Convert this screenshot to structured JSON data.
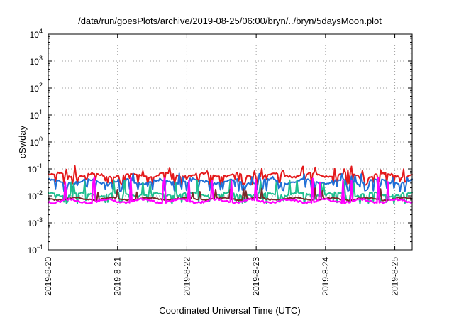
{
  "chart_data": {
    "type": "line",
    "title": "/data/run/goesPlots/archive/2019-08-25/06:00/bryn/../bryn/5daysMoon.plot",
    "xlabel": "Coordinated Universal Time (UTC)",
    "ylabel": "cSv/day",
    "y_scale": "log",
    "ylim_exponents": [
      -4,
      4
    ],
    "y_ticks": [
      {
        "base": "10",
        "exp": "-4"
      },
      {
        "base": "10",
        "exp": "-3"
      },
      {
        "base": "10",
        "exp": "-2"
      },
      {
        "base": "10",
        "exp": "-1"
      },
      {
        "base": "10",
        "exp": "0"
      },
      {
        "base": "10",
        "exp": "1"
      },
      {
        "base": "10",
        "exp": "2"
      },
      {
        "base": "10",
        "exp": "3"
      },
      {
        "base": "10",
        "exp": "4"
      }
    ],
    "x_start": "2019-08-20 00:00",
    "x_end": "2019-08-25 06:00",
    "x_ticks": [
      "2019-8-20",
      "2019-8-21",
      "2019-8-22",
      "2019-8-23",
      "2019-8-24",
      "2019-8-25"
    ],
    "grid": true,
    "series": [
      {
        "color": "#e41a1c",
        "base_min": 0.045,
        "base_max": 0.075,
        "spike_max": 0.13
      },
      {
        "color": "#1f6fd6",
        "base_min": 0.025,
        "base_max": 0.045,
        "spike_max": 0.07
      },
      {
        "color": "#1fbf8f",
        "base_min": 0.009,
        "base_max": 0.014,
        "spike_max": 0.04
      },
      {
        "color": "#7a2a2a",
        "base_min": 0.0065,
        "base_max": 0.009,
        "spike_max": 0.02
      },
      {
        "color": "#ff00ff",
        "base_min": 0.005,
        "base_max": 0.008,
        "spike_max": 0.05
      }
    ]
  }
}
